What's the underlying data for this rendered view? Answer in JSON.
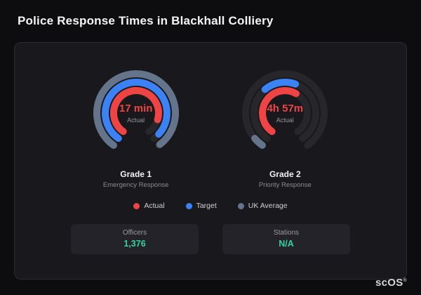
{
  "page": {
    "title": "Police Response Times in Blackhall Colliery"
  },
  "brand": {
    "logo": "scOS",
    "registered": "®"
  },
  "chart_data": {
    "type": "radial-gauge",
    "title": "Police Response Times in Blackhall Colliery",
    "track": {
      "start_deg": 215,
      "sweep_deg": 290,
      "color": "#26262b"
    },
    "gauges": [
      {
        "name": "Grade 1",
        "subtitle": "Emergency Response",
        "center_value": "17 min",
        "center_label": "Actual",
        "rings": [
          {
            "series": "UK Average",
            "color": "#64748b",
            "start_deg": 215,
            "sweep_deg": 288
          },
          {
            "series": "Target",
            "color": "#3b82f6",
            "start_deg": 215,
            "sweep_deg": 278
          },
          {
            "series": "Actual",
            "color": "#ef4444",
            "start_deg": 215,
            "sweep_deg": 252
          }
        ]
      },
      {
        "name": "Grade 2",
        "subtitle": "Priority Response",
        "center_value": "4h 57m",
        "center_label": "Actual",
        "rings": [
          {
            "series": "UK Average",
            "color": "#64748b",
            "start_deg": 215,
            "sweep_deg": 15
          },
          {
            "series": "Target",
            "color": "#3b82f6",
            "start_deg": 320,
            "sweep_deg": 60
          },
          {
            "series": "Actual",
            "color": "#ef4444",
            "start_deg": 215,
            "sweep_deg": 175
          }
        ]
      }
    ],
    "legend": [
      {
        "label": "Actual",
        "color": "#ef4444"
      },
      {
        "label": "Target",
        "color": "#3b82f6"
      },
      {
        "label": "UK Average",
        "color": "#64748b"
      }
    ]
  },
  "stats": [
    {
      "label": "Officers",
      "value": "1,376"
    },
    {
      "label": "Stations",
      "value": "N/A"
    }
  ]
}
